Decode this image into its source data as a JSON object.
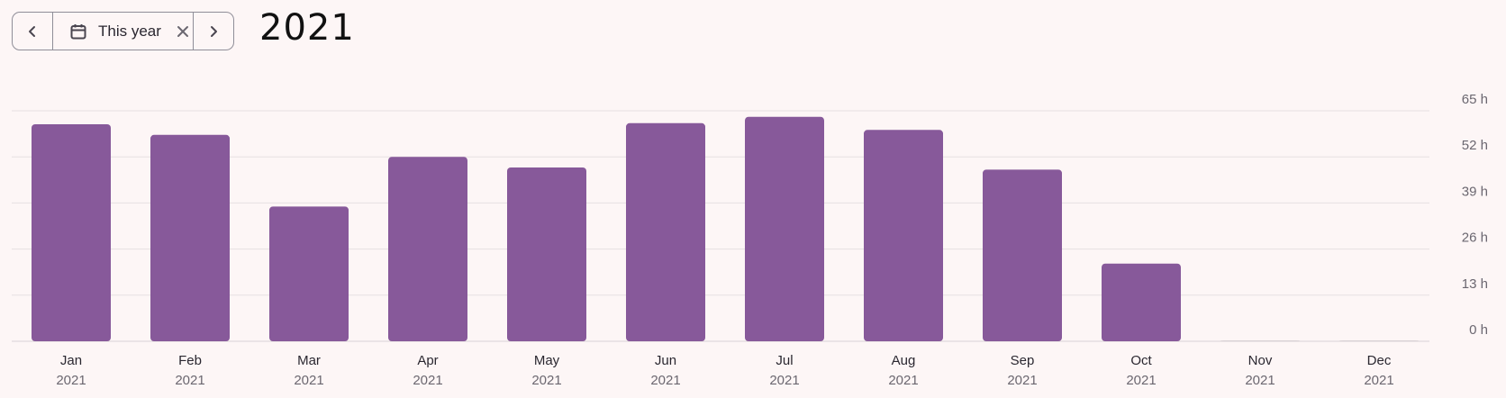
{
  "date_range": {
    "label": "This year",
    "prev_icon": "chevron-left-icon",
    "next_icon": "chevron-right-icon",
    "calendar_icon": "calendar-icon",
    "clear_icon": "close-icon"
  },
  "title": "2021",
  "colors": {
    "bar": "#87599a",
    "background": "#fdf6f6",
    "grid": "#e6e0e2"
  },
  "chart_data": {
    "type": "bar",
    "categories": [
      "Jan",
      "Feb",
      "Mar",
      "Apr",
      "May",
      "Jun",
      "Jul",
      "Aug",
      "Sep",
      "Oct",
      "Nov",
      "Dec"
    ],
    "category_sublabels": [
      "2021",
      "2021",
      "2021",
      "2021",
      "2021",
      "2021",
      "2021",
      "2021",
      "2021",
      "2021",
      "2021",
      "2021"
    ],
    "values": [
      61.2,
      58.2,
      38.0,
      52.0,
      49.0,
      61.5,
      63.3,
      59.6,
      48.4,
      21.9,
      0,
      0
    ],
    "ylim": [
      0,
      65
    ],
    "y_ticks": [
      0,
      13,
      26,
      39,
      52,
      65
    ],
    "y_tick_labels": [
      "0 h",
      "13 h",
      "26 h",
      "39 h",
      "52 h",
      "65 h"
    ],
    "y_axis_position": "right",
    "grid": true,
    "xlabel": "",
    "ylabel": ""
  }
}
